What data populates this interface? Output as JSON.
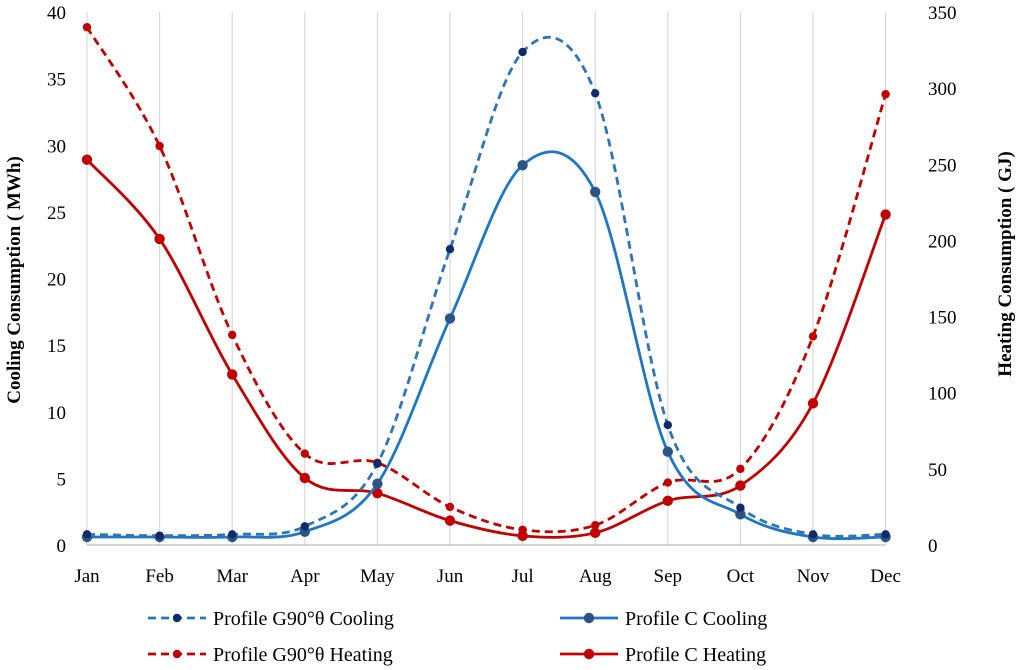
{
  "chart_data": {
    "type": "line",
    "categories": [
      "Jan",
      "Feb",
      "Mar",
      "Apr",
      "May",
      "Jun",
      "Jul",
      "Aug",
      "Sep",
      "Oct",
      "Nov",
      "Dec"
    ],
    "ylabel_left": "Cooling Consumption ( MWh)",
    "ylabel_right": "Heating Consumption ( GJ)",
    "ylim_left": [
      0,
      40
    ],
    "yticks_left": [
      0,
      5,
      10,
      15,
      20,
      25,
      30,
      35,
      40
    ],
    "ylim_right": [
      0,
      350
    ],
    "yticks_right": [
      0,
      50,
      100,
      150,
      200,
      250,
      300,
      350
    ],
    "grid": "vertical",
    "legend_position": "bottom",
    "series": [
      {
        "name": "Profile G90°θ Cooling",
        "axis": "left",
        "style": "dashed",
        "color": "#2E75B6",
        "marker_color": "#102A6B",
        "values": [
          0.8,
          0.7,
          0.8,
          1.4,
          6.1,
          22.2,
          37.0,
          33.9,
          9.0,
          2.8,
          0.8,
          0.8
        ]
      },
      {
        "name": "Profile C Cooling",
        "axis": "left",
        "style": "solid",
        "color": "#1F77C4",
        "marker_color": "#2B5684",
        "values": [
          0.6,
          0.6,
          0.6,
          1.0,
          4.6,
          17.0,
          28.5,
          26.5,
          7.0,
          2.3,
          0.6,
          0.6
        ]
      },
      {
        "name": "Profile G90°θ Heating",
        "axis": "right",
        "style": "dashed",
        "color": "#C00000",
        "marker_color": "#C00000",
        "values": [
          340,
          262,
          138,
          60,
          54,
          25,
          10,
          13,
          41,
          50,
          137,
          296
        ]
      },
      {
        "name": "Profile C Heating",
        "axis": "right",
        "style": "solid",
        "color": "#C00000",
        "marker_color": "#C00000",
        "values": [
          253,
          201,
          112,
          44,
          34,
          16,
          6,
          8,
          29,
          39,
          93,
          217
        ]
      }
    ]
  }
}
